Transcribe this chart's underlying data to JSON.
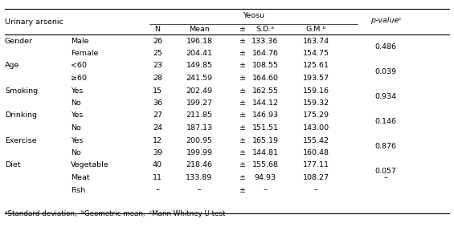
{
  "title_main": "Urinary arsenic",
  "group_header": "Yeosu",
  "pvalue_header": "p-valueᶜ",
  "col_headers": [
    "N",
    "Mean",
    "±",
    "S.D.ᵃ",
    "G.M.ᵇ"
  ],
  "rows": [
    {
      "category": "Gender",
      "subcategory": "Male",
      "N": "26",
      "Mean": "196.18",
      "SD": "133.36",
      "GM": "163.74",
      "pvalue": "0.486",
      "prow": 0
    },
    {
      "category": "",
      "subcategory": "Female",
      "N": "25",
      "Mean": "204.41",
      "SD": "164.76",
      "GM": "154.75",
      "pvalue": "",
      "prow": 1
    },
    {
      "category": "Age",
      "subcategory": "<60",
      "N": "23",
      "Mean": "149.85",
      "SD": "108.55",
      "GM": "125.61",
      "pvalue": "0.039",
      "prow": 0
    },
    {
      "category": "",
      "subcategory": "≥60",
      "N": "28",
      "Mean": "241.59",
      "SD": "164.60",
      "GM": "193.57",
      "pvalue": "",
      "prow": 1
    },
    {
      "category": "Smoking",
      "subcategory": "Yes",
      "N": "15",
      "Mean": "202.49",
      "SD": "162.55",
      "GM": "159.16",
      "pvalue": "0.934",
      "prow": 0
    },
    {
      "category": "",
      "subcategory": "No",
      "N": "36",
      "Mean": "199.27",
      "SD": "144.12",
      "GM": "159.32",
      "pvalue": "",
      "prow": 1
    },
    {
      "category": "Drinking",
      "subcategory": "Yes",
      "N": "27",
      "Mean": "211.85",
      "SD": "146.93",
      "GM": "175.29",
      "pvalue": "0.146",
      "prow": 0
    },
    {
      "category": "",
      "subcategory": "No",
      "N": "24",
      "Mean": "187.13",
      "SD": "151.51",
      "GM": "143.00",
      "pvalue": "",
      "prow": 1
    },
    {
      "category": "Exercise",
      "subcategory": "Yes",
      "N": "12",
      "Mean": "200.95",
      "SD": "165.19",
      "GM": "155.42",
      "pvalue": "0.876",
      "prow": 0
    },
    {
      "category": "",
      "subcategory": "No",
      "N": "39",
      "Mean": "199.99",
      "SD": "144.81",
      "GM": "160.48",
      "pvalue": "",
      "prow": 1
    },
    {
      "category": "Diet",
      "subcategory": "Vegetable",
      "N": "40",
      "Mean": "218.46",
      "SD": "155.68",
      "GM": "177.11",
      "pvalue": "0.057",
      "prow": 0
    },
    {
      "category": "",
      "subcategory": "Meat",
      "N": "11",
      "Mean": "133.89",
      "SD": "94.93",
      "GM": "108.27",
      "pvalue": "",
      "prow": 1
    },
    {
      "category": "",
      "subcategory": "Fish",
      "N": "–",
      "Mean": "–",
      "SD": "–",
      "GM": "–",
      "pvalue": "–",
      "prow": 2
    }
  ],
  "footnote": "ᵃStandard deviation,  ᵇGeometric mean,  ᶜMann-Whitney U test",
  "bg_color": "#ffffff",
  "text_color": "#000000",
  "font_size": 6.8
}
